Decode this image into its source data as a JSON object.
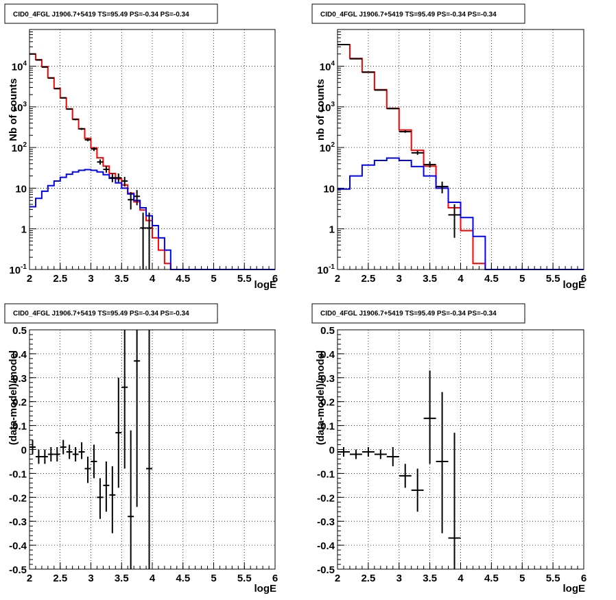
{
  "chart_data": [
    {
      "type": "line",
      "title": "CID0_4FGL J1906.7+5419 TS=95.49 PS=-0.34 PS=-0.34",
      "xlabel": "logE",
      "ylabel": "Nb of counts",
      "xlim": [
        2,
        6
      ],
      "ylim": [
        0.1,
        80000
      ],
      "log_y": true,
      "grid": true,
      "x_ticks": [
        "2",
        "2.5",
        "3",
        "3.5",
        "4",
        "4.5",
        "5",
        "5.5",
        "6"
      ],
      "y_ticks": [
        {
          "base": "10",
          "exp": "-1"
        },
        {
          "base": "1",
          "exp": ""
        },
        {
          "base": "10",
          "exp": ""
        },
        {
          "base": "10",
          "exp": "2"
        },
        {
          "base": "10",
          "exp": "3"
        },
        {
          "base": "10",
          "exp": "4"
        }
      ],
      "bin_edges": [
        2.0,
        2.1,
        2.2,
        2.3,
        2.4,
        2.5,
        2.6,
        2.7,
        2.8,
        2.9,
        3.0,
        3.1,
        3.2,
        3.3,
        3.4,
        3.5,
        3.6,
        3.7,
        3.8,
        3.9,
        4.0,
        4.1,
        4.2,
        4.3,
        4.4,
        4.5,
        4.6,
        4.7,
        4.8,
        4.9,
        5.0,
        5.1,
        5.2,
        5.3,
        5.4,
        5.5,
        5.6,
        5.7,
        5.8,
        5.9,
        6.0
      ],
      "series": [
        {
          "color": "#ff0000",
          "values": [
            20000,
            14500,
            9800,
            5200,
            2850,
            1650,
            890,
            500,
            290,
            168,
            98,
            56,
            35,
            23,
            17,
            12,
            7.5,
            4.6,
            2.9,
            1.6,
            0.6,
            0.3,
            0.14,
            0.1,
            0.1,
            0.1,
            0.1,
            0.1,
            0.1,
            0.1,
            0.1,
            0.1,
            0.1,
            0.1,
            0.1,
            0.1,
            0.1,
            0.1,
            0.1,
            0.1
          ]
        },
        {
          "color": "#0000ff",
          "values": [
            3.5,
            5.6,
            8.4,
            11.5,
            15,
            18.5,
            22,
            25,
            27.5,
            28.5,
            27.5,
            25,
            21.5,
            17.5,
            13.5,
            10,
            7.2,
            5,
            3.3,
            2.1,
            1.2,
            0.6,
            0.3,
            0.1,
            0.1,
            0.1,
            0.1,
            0.1,
            0.1,
            0.1,
            0.1,
            0.1,
            0.1,
            0.1,
            0.1,
            0.1,
            0.1,
            0.1,
            0.1,
            0.1
          ]
        }
      ],
      "points": [
        {
          "x": 2.05,
          "y": 20000,
          "ylo": 19800,
          "yhi": 20200
        },
        {
          "x": 2.15,
          "y": 14200,
          "ylo": 14050,
          "yhi": 14350
        },
        {
          "x": 2.25,
          "y": 9500,
          "ylo": 9400,
          "yhi": 9600
        },
        {
          "x": 2.35,
          "y": 5100,
          "ylo": 5030,
          "yhi": 5170
        },
        {
          "x": 2.45,
          "y": 2800,
          "ylo": 2750,
          "yhi": 2850
        },
        {
          "x": 2.55,
          "y": 1670,
          "ylo": 1630,
          "yhi": 1710
        },
        {
          "x": 2.65,
          "y": 880,
          "ylo": 850,
          "yhi": 910
        },
        {
          "x": 2.75,
          "y": 490,
          "ylo": 468,
          "yhi": 512
        },
        {
          "x": 2.85,
          "y": 287,
          "ylo": 270,
          "yhi": 304
        },
        {
          "x": 2.95,
          "y": 155,
          "ylo": 143,
          "yhi": 168
        },
        {
          "x": 3.05,
          "y": 92,
          "ylo": 82,
          "yhi": 102
        },
        {
          "x": 3.15,
          "y": 44,
          "ylo": 38,
          "yhi": 51
        },
        {
          "x": 3.25,
          "y": 29,
          "ylo": 24,
          "yhi": 35
        },
        {
          "x": 3.35,
          "y": 18,
          "ylo": 14,
          "yhi": 23
        },
        {
          "x": 3.45,
          "y": 18,
          "ylo": 14,
          "yhi": 23
        },
        {
          "x": 3.55,
          "y": 15,
          "ylo": 11,
          "yhi": 19
        },
        {
          "x": 3.65,
          "y": 5.2,
          "ylo": 3,
          "yhi": 8
        },
        {
          "x": 3.75,
          "y": 6.3,
          "ylo": 3.8,
          "yhi": 9
        },
        {
          "x": 3.85,
          "y": 1.05,
          "ylo": 0.1,
          "yhi": 2.5
        },
        {
          "x": 3.95,
          "y": 1.05,
          "ylo": 0.1,
          "yhi": 2.5
        }
      ]
    },
    {
      "type": "line",
      "title": "CID0_4FGL J1906.7+5419 TS=95.49 PS=-0.34 PS=-0.34",
      "xlabel": "logE",
      "ylabel": "nb of counts",
      "xlim": [
        2,
        6
      ],
      "ylim": [
        0.1,
        80000
      ],
      "log_y": true,
      "grid": true,
      "x_ticks": [
        "2",
        "2.5",
        "3",
        "3.5",
        "4",
        "4.5",
        "5",
        "5.5",
        "6"
      ],
      "y_ticks": [
        {
          "base": "10",
          "exp": "-1"
        },
        {
          "base": "1",
          "exp": ""
        },
        {
          "base": "10",
          "exp": ""
        },
        {
          "base": "10",
          "exp": "2"
        },
        {
          "base": "10",
          "exp": "3"
        },
        {
          "base": "10",
          "exp": "4"
        }
      ],
      "bin_edges": [
        2.0,
        2.2,
        2.4,
        2.6,
        2.8,
        3.0,
        3.2,
        3.4,
        3.6,
        3.8,
        4.0,
        4.2,
        4.4,
        4.6,
        4.8,
        5.0,
        5.2,
        5.4,
        5.6,
        5.8,
        6.0
      ],
      "series": [
        {
          "color": "#ff0000",
          "values": [
            34000,
            15500,
            7200,
            2650,
            920,
            270,
            85,
            35,
            10,
            3.3,
            0.9,
            0.14,
            0.1,
            0.1,
            0.1,
            0.1,
            0.1,
            0.1,
            0.1,
            0.1
          ]
        },
        {
          "color": "#0000ff",
          "values": [
            9.5,
            20,
            37,
            48,
            55,
            48,
            34,
            20,
            10,
            4.5,
            1.9,
            0.65,
            0.1,
            0.1,
            0.1,
            0.1,
            0.1,
            0.1,
            0.1,
            0.1
          ]
        }
      ],
      "points": [
        {
          "x": 2.1,
          "y": 34000,
          "ylo": 33800,
          "yhi": 34200
        },
        {
          "x": 2.3,
          "y": 15200,
          "ylo": 15050,
          "yhi": 15350
        },
        {
          "x": 2.5,
          "y": 7100,
          "ylo": 7000,
          "yhi": 7200
        },
        {
          "x": 2.7,
          "y": 2580,
          "ylo": 2530,
          "yhi": 2630
        },
        {
          "x": 2.9,
          "y": 905,
          "ylo": 875,
          "yhi": 935
        },
        {
          "x": 3.1,
          "y": 245,
          "ylo": 230,
          "yhi": 261
        },
        {
          "x": 3.3,
          "y": 74,
          "ylo": 66,
          "yhi": 83
        },
        {
          "x": 3.5,
          "y": 38,
          "ylo": 32,
          "yhi": 45
        },
        {
          "x": 3.7,
          "y": 11,
          "ylo": 7.5,
          "yhi": 14.5
        },
        {
          "x": 3.9,
          "y": 2.2,
          "ylo": 0.6,
          "yhi": 4
        }
      ]
    },
    {
      "type": "scatter",
      "title": "CID0_4FGL J1906.7+5419 TS=95.49 PS=-0.34 PS=-0.34",
      "xlabel": "logE",
      "ylabel": "(data-model)/model",
      "xlim": [
        2,
        6
      ],
      "ylim": [
        -0.5,
        0.5
      ],
      "grid": true,
      "x_ticks": [
        "2",
        "2.5",
        "3",
        "3.5",
        "4",
        "4.5",
        "5",
        "5.5",
        "6"
      ],
      "y_ticks": [
        "-0.5",
        "-0.4",
        "-0.3",
        "-0.2",
        "-0.1",
        "0",
        "0.1",
        "0.2",
        "0.3",
        "0.4",
        "0.5"
      ],
      "xerr": 0.05,
      "points": [
        {
          "x": 2.05,
          "y": 0.01,
          "ylo": -0.02,
          "yhi": 0.04
        },
        {
          "x": 2.15,
          "y": -0.03,
          "ylo": -0.06,
          "yhi": 0.0
        },
        {
          "x": 2.25,
          "y": -0.03,
          "ylo": -0.06,
          "yhi": 0.0
        },
        {
          "x": 2.35,
          "y": -0.02,
          "ylo": -0.05,
          "yhi": 0.01
        },
        {
          "x": 2.45,
          "y": -0.02,
          "ylo": -0.05,
          "yhi": 0.01
        },
        {
          "x": 2.55,
          "y": 0.01,
          "ylo": -0.02,
          "yhi": 0.04
        },
        {
          "x": 2.65,
          "y": -0.01,
          "ylo": -0.04,
          "yhi": 0.02
        },
        {
          "x": 2.75,
          "y": -0.02,
          "ylo": -0.05,
          "yhi": 0.01
        },
        {
          "x": 2.85,
          "y": -0.01,
          "ylo": -0.04,
          "yhi": 0.03
        },
        {
          "x": 2.95,
          "y": -0.08,
          "ylo": -0.14,
          "yhi": -0.03
        },
        {
          "x": 3.05,
          "y": -0.05,
          "ylo": -0.12,
          "yhi": 0.02
        },
        {
          "x": 3.15,
          "y": -0.2,
          "ylo": -0.29,
          "yhi": -0.12
        },
        {
          "x": 3.25,
          "y": -0.15,
          "ylo": -0.26,
          "yhi": -0.05
        },
        {
          "x": 3.35,
          "y": -0.19,
          "ylo": -0.35,
          "yhi": -0.07
        },
        {
          "x": 3.45,
          "y": 0.07,
          "ylo": -0.16,
          "yhi": 0.3
        },
        {
          "x": 3.55,
          "y": 0.26,
          "ylo": -0.08,
          "yhi": 0.5
        },
        {
          "x": 3.65,
          "y": -0.28,
          "ylo": -0.5,
          "yhi": 0.08
        },
        {
          "x": 3.75,
          "y": 0.37,
          "ylo": -0.24,
          "yhi": 0.5
        },
        {
          "x": 3.95,
          "y": -0.08,
          "ylo": -0.5,
          "yhi": 0.5
        }
      ]
    },
    {
      "type": "scatter",
      "title": "CID0_4FGL J1906.7+5419 TS=95.49 PS=-0.34 PS=-0.34",
      "xlabel": "logE",
      "ylabel": "(data-model)/model",
      "xlim": [
        2,
        6
      ],
      "ylim": [
        -0.5,
        0.5
      ],
      "grid": true,
      "x_ticks": [
        "2",
        "2.5",
        "3",
        "3.5",
        "4",
        "4.5",
        "5",
        "5.5",
        "6"
      ],
      "y_ticks": [
        "-0.5",
        "-0.4",
        "-0.3",
        "-0.2",
        "-0.1",
        "0",
        "0.1",
        "0.2",
        "0.3",
        "0.4",
        "0.5"
      ],
      "xerr": 0.1,
      "points": [
        {
          "x": 2.1,
          "y": -0.01,
          "ylo": -0.03,
          "yhi": 0.01
        },
        {
          "x": 2.3,
          "y": -0.02,
          "ylo": -0.04,
          "yhi": 0.0
        },
        {
          "x": 2.5,
          "y": -0.01,
          "ylo": -0.03,
          "yhi": 0.01
        },
        {
          "x": 2.7,
          "y": -0.02,
          "ylo": -0.04,
          "yhi": 0.0
        },
        {
          "x": 2.9,
          "y": -0.03,
          "ylo": -0.07,
          "yhi": 0.01
        },
        {
          "x": 3.1,
          "y": -0.11,
          "ylo": -0.16,
          "yhi": -0.06
        },
        {
          "x": 3.3,
          "y": -0.17,
          "ylo": -0.26,
          "yhi": -0.08
        },
        {
          "x": 3.5,
          "y": 0.13,
          "ylo": -0.06,
          "yhi": 0.33
        },
        {
          "x": 3.7,
          "y": -0.05,
          "ylo": -0.35,
          "yhi": 0.24
        },
        {
          "x": 3.9,
          "y": -0.37,
          "ylo": -0.5,
          "yhi": 0.07
        }
      ]
    }
  ]
}
